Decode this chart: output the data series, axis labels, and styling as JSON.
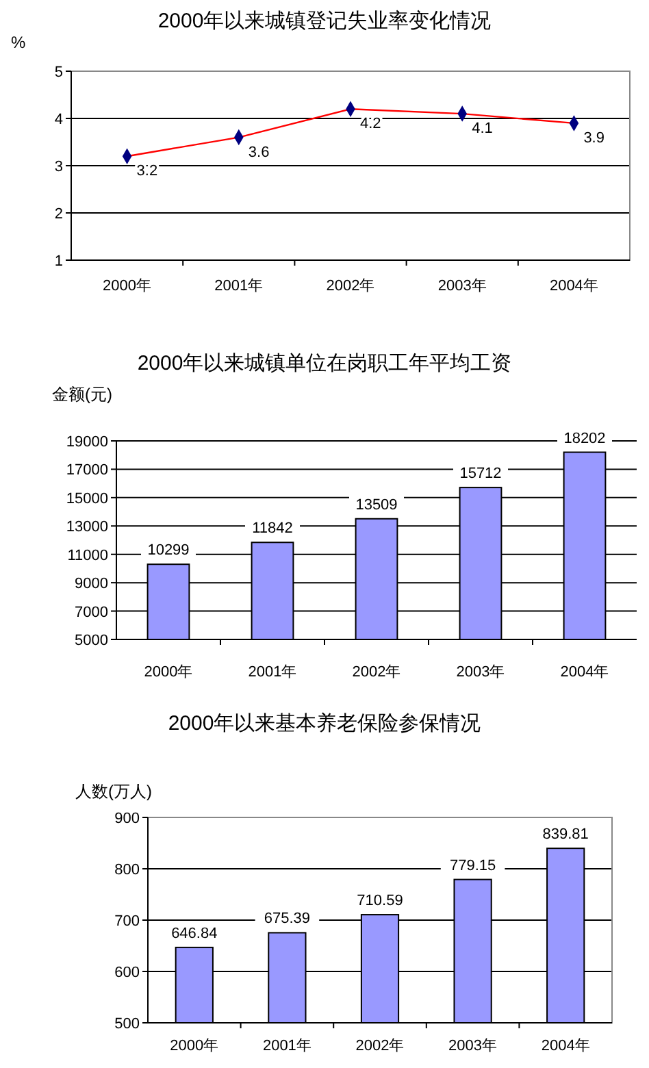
{
  "chart_data": [
    {
      "type": "line",
      "title": "2000年以来城镇登记失业率变化情况",
      "ylabel": "%",
      "categories": [
        "2000年",
        "2001年",
        "2002年",
        "2003年",
        "2004年"
      ],
      "series": [
        {
          "color": "#ff0000",
          "values": [
            3.2,
            3.6,
            4.2,
            4.1,
            3.9
          ]
        }
      ],
      "ylim": [
        1,
        5
      ],
      "yticks": [
        1,
        2,
        3,
        4,
        5
      ],
      "grid": "y",
      "marker": "diamond",
      "data_labels": true
    },
    {
      "type": "bar",
      "title": "2000年以来城镇单位在岗职工年平均工资",
      "ylabel": "金额(元)",
      "categories": [
        "2000年",
        "2001年",
        "2002年",
        "2003年",
        "2004年"
      ],
      "series": [
        {
          "color": "#9999ff",
          "values": [
            10299,
            11842,
            13509,
            15712,
            18202
          ]
        }
      ],
      "ylim": [
        5000,
        19000
      ],
      "yticks": [
        5000,
        7000,
        9000,
        11000,
        13000,
        15000,
        17000,
        19000
      ],
      "grid": "y",
      "data_labels": true
    },
    {
      "type": "bar",
      "title": "2000年以来基本养老保险参保情况",
      "ylabel": "人数(万人)",
      "categories": [
        "2000年",
        "2001年",
        "2002年",
        "2003年",
        "2004年"
      ],
      "series": [
        {
          "color": "#9999ff",
          "values": [
            646.84,
            675.39,
            710.59,
            779.15,
            839.81
          ]
        }
      ],
      "ylim": [
        500,
        900
      ],
      "yticks": [
        500,
        600,
        700,
        800,
        900
      ],
      "grid": "y",
      "data_labels": true
    }
  ]
}
